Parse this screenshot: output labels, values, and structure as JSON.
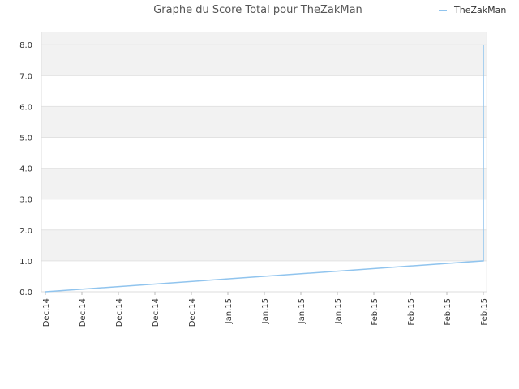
{
  "chart_data": {
    "type": "line",
    "title": "Graphe du Score Total pour TheZakMan",
    "xlabel": "",
    "ylabel": "",
    "ylim": [
      0,
      8.4
    ],
    "yticks": [
      "0.0",
      "1.0",
      "2.0",
      "3.0",
      "4.0",
      "5.0",
      "6.0",
      "7.0",
      "8.0"
    ],
    "x_tick_labels": [
      "Dec.14",
      "Dec.14",
      "Dec.14",
      "Dec.14",
      "Dec.14",
      "Jan.15",
      "Jan.15",
      "Jan.15",
      "Jan.15",
      "Feb.15",
      "Feb.15",
      "Feb.15",
      "Feb.15"
    ],
    "grid": true,
    "legend_position": "top-right",
    "series": [
      {
        "name": "TheZakMan",
        "color": "#90c4ee",
        "x": [
          0,
          12,
          12
        ],
        "y": [
          0,
          1,
          8
        ]
      }
    ]
  }
}
